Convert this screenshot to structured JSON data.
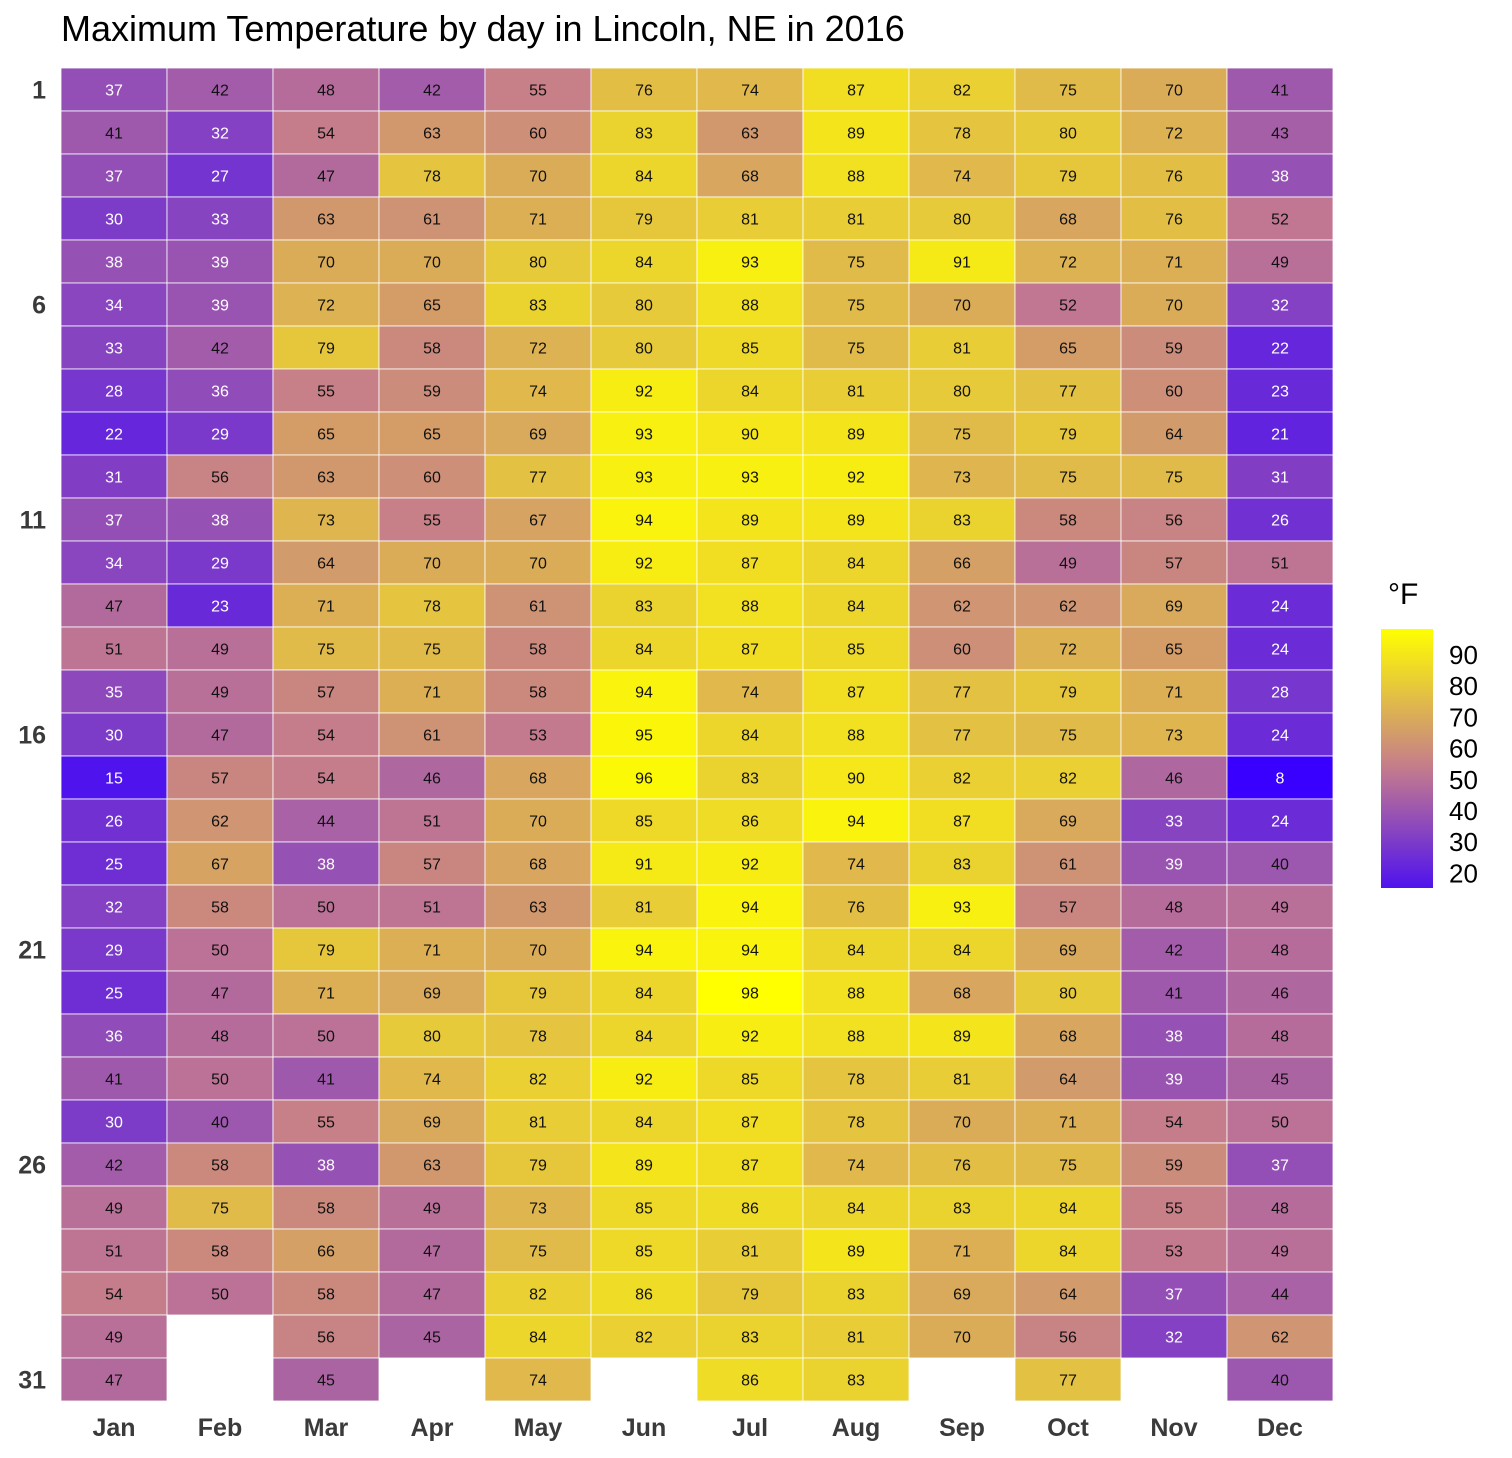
{
  "chart_data": {
    "type": "heatmap",
    "title": "Maximum Temperature by day in Lincoln, NE in 2016",
    "x_categories": [
      "Jan",
      "Feb",
      "Mar",
      "Apr",
      "May",
      "Jun",
      "Jul",
      "Aug",
      "Sep",
      "Oct",
      "Nov",
      "Dec"
    ],
    "y_tick_labels": [
      "1",
      "6",
      "11",
      "16",
      "21",
      "26",
      "31"
    ],
    "y_tick_days": [
      1,
      6,
      11,
      16,
      21,
      26,
      31
    ],
    "legend": {
      "title": "°F",
      "breaks": [
        90,
        80,
        70,
        60,
        50,
        40,
        30,
        20
      ],
      "range": [
        8,
        98
      ],
      "low_color": "#3a00ff",
      "mid_color": "#c47a8e",
      "high_color": "#ffff00"
    },
    "values_by_month": [
      [
        37,
        41,
        37,
        30,
        38,
        34,
        33,
        28,
        22,
        31,
        37,
        34,
        47,
        51,
        35,
        30,
        15,
        26,
        25,
        32,
        29,
        25,
        36,
        41,
        30,
        42,
        49,
        51,
        54,
        49,
        47
      ],
      [
        42,
        32,
        27,
        33,
        39,
        39,
        42,
        36,
        29,
        56,
        38,
        29,
        23,
        49,
        49,
        47,
        57,
        62,
        67,
        58,
        50,
        47,
        48,
        50,
        40,
        58,
        75,
        58,
        50
      ],
      [
        48,
        54,
        47,
        63,
        70,
        72,
        79,
        55,
        65,
        63,
        73,
        64,
        71,
        75,
        57,
        54,
        54,
        44,
        38,
        50,
        79,
        71,
        50,
        41,
        55,
        38,
        58,
        66,
        58,
        56,
        45
      ],
      [
        42,
        63,
        78,
        61,
        70,
        65,
        58,
        59,
        65,
        60,
        55,
        70,
        78,
        75,
        71,
        61,
        46,
        51,
        57,
        51,
        71,
        69,
        80,
        74,
        69,
        63,
        49,
        47,
        47,
        45
      ],
      [
        55,
        60,
        70,
        71,
        80,
        83,
        72,
        74,
        69,
        77,
        67,
        70,
        61,
        58,
        58,
        53,
        68,
        70,
        68,
        63,
        70,
        79,
        78,
        82,
        81,
        79,
        73,
        75,
        82,
        84,
        74
      ],
      [
        76,
        83,
        84,
        79,
        84,
        80,
        80,
        92,
        93,
        93,
        94,
        92,
        83,
        84,
        94,
        95,
        96,
        85,
        91,
        81,
        94,
        84,
        84,
        92,
        84,
        89,
        85,
        85,
        86,
        82
      ],
      [
        74,
        63,
        68,
        81,
        93,
        88,
        85,
        84,
        90,
        93,
        89,
        87,
        88,
        87,
        74,
        84,
        83,
        86,
        92,
        94,
        94,
        98,
        92,
        85,
        87,
        87,
        86,
        81,
        79,
        83,
        86
      ],
      [
        87,
        89,
        88,
        81,
        75,
        75,
        75,
        81,
        89,
        92,
        89,
        84,
        84,
        85,
        87,
        88,
        90,
        94,
        74,
        76,
        84,
        88,
        88,
        78,
        78,
        74,
        84,
        89,
        83,
        81,
        83
      ],
      [
        82,
        78,
        74,
        80,
        91,
        70,
        81,
        80,
        75,
        73,
        83,
        66,
        62,
        60,
        77,
        77,
        82,
        87,
        83,
        93,
        84,
        68,
        89,
        81,
        70,
        76,
        83,
        71,
        69,
        70
      ],
      [
        75,
        80,
        79,
        68,
        72,
        52,
        65,
        77,
        79,
        75,
        58,
        49,
        62,
        72,
        79,
        75,
        82,
        69,
        61,
        57,
        69,
        80,
        68,
        64,
        71,
        75,
        84,
        84,
        64,
        56,
        77
      ],
      [
        70,
        72,
        76,
        76,
        71,
        70,
        59,
        60,
        64,
        75,
        56,
        57,
        69,
        65,
        71,
        73,
        46,
        33,
        39,
        48,
        42,
        41,
        38,
        39,
        54,
        59,
        55,
        53,
        37,
        32
      ],
      [
        41,
        43,
        38,
        52,
        49,
        32,
        22,
        23,
        21,
        31,
        26,
        51,
        24,
        24,
        28,
        24,
        8,
        24,
        40,
        49,
        48,
        46,
        48,
        45,
        50,
        37,
        48,
        49,
        44,
        62,
        40
      ]
    ]
  }
}
